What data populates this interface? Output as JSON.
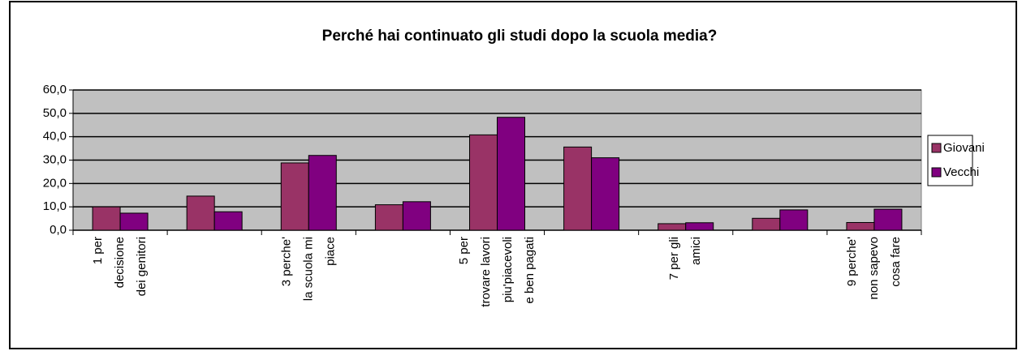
{
  "chart_data": {
    "type": "bar",
    "title": "Perché hai continuato gli studi dopo la scuola media?",
    "categories": [
      "1   per\ndecisione\ndei genitori",
      null,
      "3   perche'\nla scuola mi\npiace",
      null,
      "5   per\ntrovare lavori\npiu'piacevoli\ne ben pagati",
      null,
      "7   per gli\namici",
      null,
      "9   perche'\nnon sapevo\ncosa fare"
    ],
    "series": [
      {
        "name": "Giovani",
        "color": "#993366",
        "values": [
          10.0,
          14.6,
          28.8,
          10.9,
          40.8,
          35.6,
          2.8,
          5.1,
          3.3
        ]
      },
      {
        "name": "Vecchi",
        "color": "#800080",
        "values": [
          7.3,
          7.9,
          32.0,
          12.2,
          48.3,
          31.0,
          3.2,
          8.7,
          9.0
        ]
      }
    ],
    "ylim": [
      0,
      60
    ],
    "yticks": [
      {
        "value": 0,
        "label": "0,0"
      },
      {
        "value": 10,
        "label": "10,0"
      },
      {
        "value": 20,
        "label": "20,0"
      },
      {
        "value": 30,
        "label": "30,0"
      },
      {
        "value": 40,
        "label": "40,0"
      },
      {
        "value": 50,
        "label": "50,0"
      },
      {
        "value": 60,
        "label": "60,0"
      }
    ],
    "grid": true,
    "legend": "right",
    "plot_background": "#c0c0c0"
  }
}
